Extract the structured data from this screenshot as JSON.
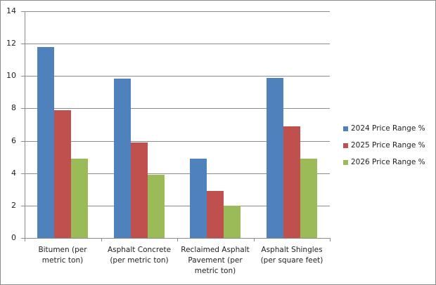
{
  "chart_data": {
    "type": "bar",
    "title": "",
    "xlabel": "",
    "ylabel": "",
    "ylim": [
      0,
      14
    ],
    "yticks": [
      0,
      2,
      4,
      6,
      8,
      10,
      12,
      14
    ],
    "grid": true,
    "legend_position": "right",
    "categories": [
      "Bitumen (per metric ton)",
      "Asphalt Concrete (per metric ton)",
      "Reclaimed Asphalt Pavement (per metric ton)",
      "Asphalt Shingles (per square feet)"
    ],
    "series": [
      {
        "name": "2024 Price Range %",
        "color": "#4f81bd",
        "values": [
          11.8,
          9.85,
          4.9,
          9.9
        ]
      },
      {
        "name": "2025 Price Range %",
        "color": "#c0504d",
        "values": [
          7.9,
          5.9,
          2.9,
          6.9
        ]
      },
      {
        "name": "2026 Price Range %",
        "color": "#9bbb59",
        "values": [
          4.9,
          3.9,
          2.0,
          4.9
        ]
      }
    ]
  },
  "axis": {
    "y_labels": [
      "0",
      "2",
      "4",
      "6",
      "8",
      "10",
      "12",
      "14"
    ]
  },
  "x_labels": [
    [
      "Bitumen (per",
      "metric ton)"
    ],
    [
      "Asphalt Concrete",
      "(per metric ton)"
    ],
    [
      "Reclaimed Asphalt",
      "Pavement (per",
      "metric ton)"
    ],
    [
      "Asphalt Shingles",
      "(per square feet)"
    ]
  ],
  "legend": {
    "items": [
      {
        "label": "2024 Price Range %",
        "color": "#4f81bd"
      },
      {
        "label": "2025 Price Range %",
        "color": "#c0504d"
      },
      {
        "label": "2026 Price Range %",
        "color": "#9bbb59"
      }
    ]
  }
}
